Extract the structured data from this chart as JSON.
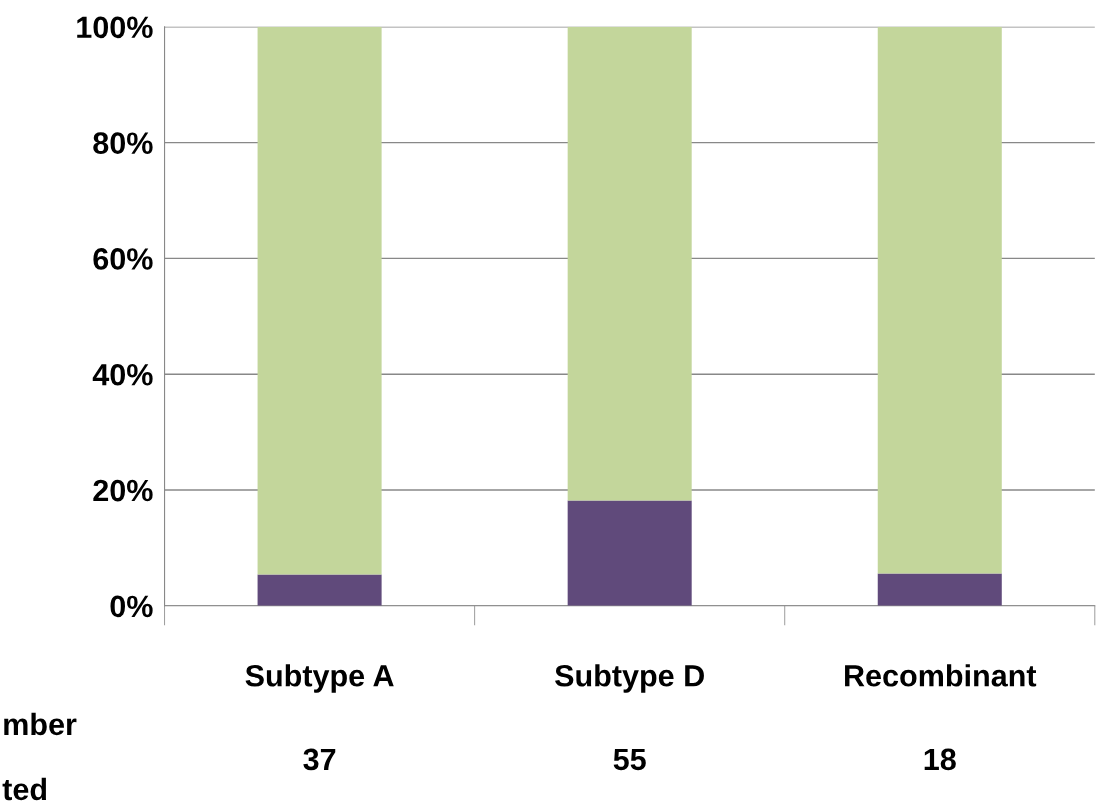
{
  "chart_data": {
    "type": "bar",
    "stacked": true,
    "categories": [
      "Subtype A",
      "Subtype D",
      "Recombinant"
    ],
    "series": [
      {
        "color": "#604a7b",
        "values": [
          5.4,
          18.2,
          5.6
        ]
      },
      {
        "color": "#c3d69b",
        "values": [
          94.6,
          81.8,
          94.4
        ]
      }
    ],
    "ylim": [
      0,
      100
    ],
    "yticks": [
      {
        "value": 0,
        "label": "0%"
      },
      {
        "value": 20,
        "label": "20%"
      },
      {
        "value": 40,
        "label": "40%"
      },
      {
        "value": 60,
        "label": "60%"
      },
      {
        "value": 80,
        "label": "80%"
      },
      {
        "value": 100,
        "label": "100%"
      }
    ],
    "grid": "y",
    "legend": false,
    "annotations": [
      "mber",
      "ted",
      "37",
      "55",
      "18"
    ]
  }
}
